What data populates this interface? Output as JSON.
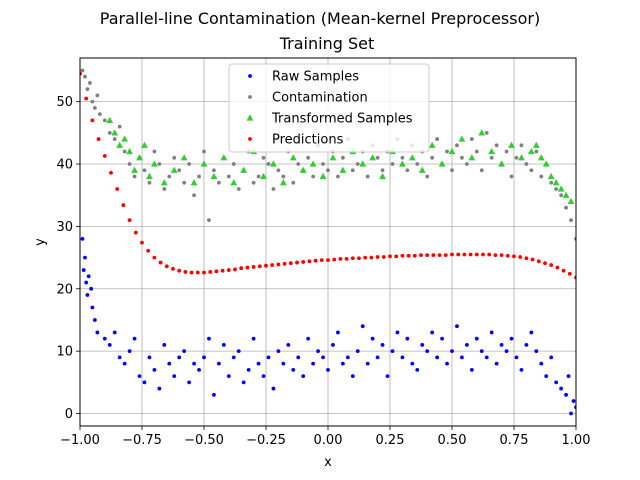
{
  "chart_data": {
    "type": "scatter",
    "title": "Parallel-line Contamination (Mean-kernel Preprocessor)",
    "subtitle": "Training Set",
    "xlabel": "x",
    "ylabel": "y",
    "xlim": [
      -1.0,
      1.0
    ],
    "ylim": [
      -2.0,
      57.0
    ],
    "xticks": [
      -1.0,
      -0.75,
      -0.5,
      -0.25,
      0.0,
      0.25,
      0.5,
      0.75,
      1.0
    ],
    "xtick_labels": [
      "−1.00",
      "−0.75",
      "−0.50",
      "−0.25",
      "0.00",
      "0.25",
      "0.50",
      "0.75",
      "1.00"
    ],
    "yticks": [
      0,
      10,
      20,
      30,
      40,
      50
    ],
    "ytick_labels": [
      "0",
      "10",
      "20",
      "30",
      "40",
      "50"
    ],
    "grid": true,
    "legend_position": "top-center",
    "series": [
      {
        "name": "Raw Samples",
        "color": "#0000ff",
        "marker": "dot",
        "x": [
          -0.99,
          -0.985,
          -0.98,
          -0.975,
          -0.97,
          -0.965,
          -0.955,
          -0.95,
          -0.94,
          -0.93,
          -0.9,
          -0.88,
          -0.86,
          -0.84,
          -0.82,
          -0.8,
          -0.78,
          -0.76,
          -0.74,
          -0.72,
          -0.7,
          -0.68,
          -0.66,
          -0.64,
          -0.62,
          -0.6,
          -0.58,
          -0.56,
          -0.54,
          -0.52,
          -0.5,
          -0.48,
          -0.46,
          -0.44,
          -0.42,
          -0.4,
          -0.38,
          -0.36,
          -0.34,
          -0.32,
          -0.3,
          -0.28,
          -0.26,
          -0.24,
          -0.22,
          -0.2,
          -0.18,
          -0.16,
          -0.14,
          -0.12,
          -0.1,
          -0.08,
          -0.06,
          -0.04,
          -0.02,
          0.0,
          0.02,
          0.04,
          0.06,
          0.08,
          0.1,
          0.12,
          0.14,
          0.16,
          0.18,
          0.2,
          0.22,
          0.24,
          0.26,
          0.28,
          0.3,
          0.32,
          0.34,
          0.36,
          0.38,
          0.4,
          0.42,
          0.44,
          0.46,
          0.48,
          0.5,
          0.52,
          0.54,
          0.56,
          0.58,
          0.6,
          0.62,
          0.64,
          0.66,
          0.68,
          0.7,
          0.72,
          0.74,
          0.76,
          0.78,
          0.8,
          0.82,
          0.84,
          0.86,
          0.88,
          0.9,
          0.92,
          0.94,
          0.96,
          0.97,
          0.98,
          0.99,
          1.0
        ],
        "y": [
          28,
          23,
          25,
          21,
          19,
          22,
          20,
          17,
          15,
          13,
          12,
          11,
          13,
          9,
          8,
          10,
          12,
          6,
          5,
          9,
          7,
          4,
          11,
          8,
          6,
          9,
          10,
          5,
          8,
          7,
          9,
          12,
          3,
          8,
          11,
          6,
          9,
          10,
          5,
          7,
          12,
          8,
          6,
          9,
          4,
          10,
          8,
          11,
          7,
          9,
          6,
          12,
          8,
          10,
          9,
          7,
          11,
          13,
          8,
          9,
          6,
          10,
          14,
          8,
          12,
          9,
          11,
          6,
          10,
          13,
          9,
          12,
          8,
          7,
          11,
          10,
          13,
          9,
          12,
          8,
          10,
          14,
          9,
          11,
          7,
          12,
          10,
          9,
          13,
          8,
          11,
          10,
          12,
          9,
          7,
          11,
          13,
          10,
          8,
          6,
          9,
          5,
          4,
          3,
          6,
          0,
          2,
          1
        ]
      },
      {
        "name": "Contamination",
        "color": "#808080",
        "marker": "dot",
        "x": [
          -0.99,
          -0.98,
          -0.97,
          -0.96,
          -0.95,
          -0.94,
          -0.93,
          -0.92,
          -0.9,
          -0.88,
          -0.86,
          -0.84,
          -0.82,
          -0.8,
          -0.78,
          -0.76,
          -0.74,
          -0.72,
          -0.7,
          -0.68,
          -0.66,
          -0.64,
          -0.62,
          -0.6,
          -0.58,
          -0.56,
          -0.54,
          -0.52,
          -0.5,
          -0.48,
          -0.46,
          -0.44,
          -0.42,
          -0.4,
          -0.38,
          -0.36,
          -0.34,
          -0.32,
          -0.3,
          -0.28,
          -0.26,
          -0.24,
          -0.22,
          -0.2,
          -0.18,
          -0.16,
          -0.14,
          -0.12,
          -0.1,
          -0.08,
          -0.06,
          -0.04,
          -0.02,
          0.0,
          0.02,
          0.04,
          0.06,
          0.08,
          0.1,
          0.12,
          0.14,
          0.16,
          0.18,
          0.2,
          0.22,
          0.24,
          0.26,
          0.28,
          0.3,
          0.32,
          0.34,
          0.36,
          0.38,
          0.4,
          0.42,
          0.44,
          0.46,
          0.48,
          0.5,
          0.52,
          0.54,
          0.56,
          0.58,
          0.6,
          0.62,
          0.64,
          0.66,
          0.68,
          0.7,
          0.72,
          0.74,
          0.76,
          0.78,
          0.8,
          0.82,
          0.84,
          0.86,
          0.88,
          0.9,
          0.92,
          0.94,
          0.96,
          0.98,
          1.0
        ],
        "y": [
          55,
          54,
          52,
          53,
          50,
          49,
          51,
          48,
          47,
          45,
          44,
          46,
          42,
          40,
          38,
          41,
          39,
          37,
          42,
          40,
          36,
          38,
          41,
          39,
          37,
          40,
          35,
          38,
          42,
          31,
          39,
          37,
          41,
          38,
          40,
          36,
          39,
          42,
          37,
          38,
          41,
          40,
          36,
          39,
          38,
          42,
          37,
          40,
          39,
          41,
          38,
          43,
          40,
          39,
          42,
          38,
          41,
          44,
          39,
          40,
          42,
          38,
          43,
          41,
          39,
          42,
          40,
          44,
          41,
          39,
          43,
          40,
          42,
          38,
          41,
          44,
          40,
          42,
          39,
          43,
          41,
          40,
          44,
          42,
          39,
          45,
          41,
          43,
          40,
          42,
          38,
          41,
          43,
          40,
          39,
          42,
          38,
          40,
          37,
          36,
          35,
          33,
          31,
          28
        ]
      },
      {
        "name": "Transformed Samples",
        "color": "#32cd32",
        "marker": "triangle",
        "x": [
          -0.88,
          -0.86,
          -0.84,
          -0.82,
          -0.8,
          -0.78,
          -0.76,
          -0.74,
          -0.72,
          -0.7,
          -0.66,
          -0.62,
          -0.58,
          -0.54,
          -0.5,
          -0.46,
          -0.42,
          -0.38,
          -0.34,
          -0.3,
          -0.26,
          -0.22,
          -0.18,
          -0.14,
          -0.1,
          -0.06,
          -0.02,
          0.02,
          0.06,
          0.1,
          0.14,
          0.18,
          0.22,
          0.26,
          0.3,
          0.34,
          0.38,
          0.42,
          0.46,
          0.5,
          0.54,
          0.58,
          0.62,
          0.66,
          0.7,
          0.74,
          0.78,
          0.82,
          0.84,
          0.86,
          0.88,
          0.9,
          0.92,
          0.94,
          0.96,
          0.98
        ],
        "y": [
          47,
          45,
          43,
          44,
          42,
          39,
          41,
          43,
          38,
          40,
          37,
          39,
          41,
          37,
          40,
          38,
          41,
          37,
          39,
          42,
          38,
          40,
          37,
          41,
          39,
          40,
          38,
          41,
          39,
          42,
          40,
          41,
          38,
          42,
          40,
          41,
          39,
          43,
          40,
          42,
          44,
          41,
          45,
          42,
          40,
          43,
          41,
          42,
          43,
          41,
          40,
          38,
          37,
          36,
          35,
          34
        ]
      },
      {
        "name": "Predictions",
        "color": "#ff0000",
        "marker": "dot",
        "x": [
          -1.0,
          -0.975,
          -0.95,
          -0.925,
          -0.9,
          -0.875,
          -0.85,
          -0.825,
          -0.8,
          -0.775,
          -0.75,
          -0.725,
          -0.7,
          -0.675,
          -0.65,
          -0.625,
          -0.6,
          -0.575,
          -0.55,
          -0.525,
          -0.5,
          -0.475,
          -0.45,
          -0.425,
          -0.4,
          -0.375,
          -0.35,
          -0.325,
          -0.3,
          -0.275,
          -0.25,
          -0.225,
          -0.2,
          -0.175,
          -0.15,
          -0.125,
          -0.1,
          -0.075,
          -0.05,
          -0.025,
          0.0,
          0.025,
          0.05,
          0.075,
          0.1,
          0.125,
          0.15,
          0.175,
          0.2,
          0.225,
          0.25,
          0.275,
          0.3,
          0.325,
          0.35,
          0.375,
          0.4,
          0.425,
          0.45,
          0.475,
          0.5,
          0.525,
          0.55,
          0.575,
          0.6,
          0.625,
          0.65,
          0.675,
          0.7,
          0.725,
          0.75,
          0.775,
          0.8,
          0.825,
          0.85,
          0.875,
          0.9,
          0.925,
          0.95,
          0.975,
          1.0
        ],
        "y": [
          54.5,
          50.5,
          47.0,
          44.0,
          41.3,
          38.6,
          36.0,
          33.4,
          31.0,
          29.0,
          27.4,
          26.1,
          25.0,
          24.2,
          23.6,
          23.2,
          22.9,
          22.7,
          22.6,
          22.6,
          22.6,
          22.7,
          22.8,
          22.9,
          23.0,
          23.1,
          23.3,
          23.4,
          23.5,
          23.6,
          23.7,
          23.8,
          23.9,
          24.0,
          24.1,
          24.2,
          24.3,
          24.4,
          24.5,
          24.6,
          24.6,
          24.7,
          24.8,
          24.8,
          24.9,
          24.9,
          25.0,
          25.0,
          25.1,
          25.1,
          25.2,
          25.2,
          25.3,
          25.3,
          25.3,
          25.4,
          25.4,
          25.4,
          25.4,
          25.4,
          25.5,
          25.5,
          25.5,
          25.5,
          25.5,
          25.5,
          25.5,
          25.4,
          25.4,
          25.3,
          25.2,
          25.1,
          24.9,
          24.7,
          24.4,
          24.1,
          23.8,
          23.4,
          22.9,
          22.4,
          21.8
        ]
      }
    ]
  }
}
